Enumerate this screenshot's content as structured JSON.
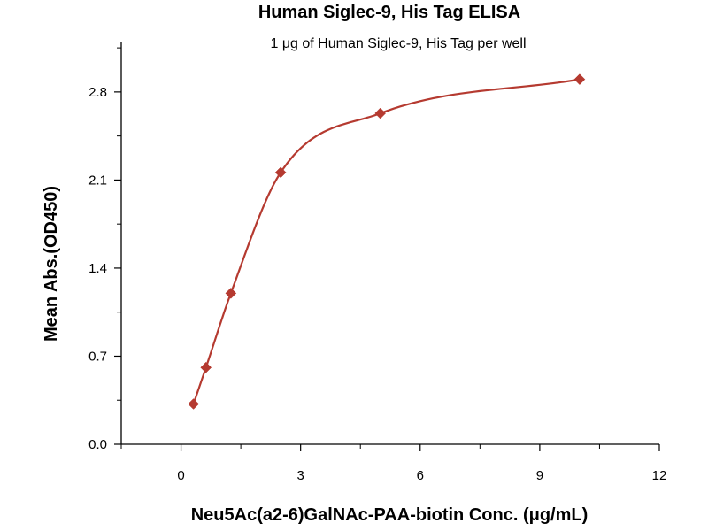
{
  "chart_data": {
    "type": "scatter",
    "title": "Human Siglec-9, His Tag ELISA",
    "subtitle": "1 μg of Human Siglec-9, His Tag per well",
    "xlabel": "Neu5Ac(a2-6)GalNAc-PAA-biotin Conc. (μg/mL)",
    "ylabel": "Mean Abs.(OD450)",
    "xlim": [
      -1.5,
      12
    ],
    "ylim": [
      0,
      3.2
    ],
    "x_ticks": [
      0,
      3,
      6,
      9,
      12
    ],
    "x_tick_labels": [
      "0",
      "3",
      "6",
      "9",
      "12"
    ],
    "y_ticks": [
      0,
      0.7,
      1.4,
      2.1,
      2.8
    ],
    "y_tick_labels": [
      "0.0",
      "0.7",
      "1.4",
      "2.1",
      "2.8"
    ],
    "grid": false,
    "series": [
      {
        "color": "#b53a30",
        "marker": "diamond",
        "fit_curve": true,
        "points": [
          {
            "x": 0.3125,
            "y": 0.32
          },
          {
            "x": 0.625,
            "y": 0.61
          },
          {
            "x": 1.25,
            "y": 1.2
          },
          {
            "x": 2.5,
            "y": 2.16
          },
          {
            "x": 5,
            "y": 2.63
          },
          {
            "x": 10,
            "y": 2.9
          }
        ]
      }
    ]
  }
}
